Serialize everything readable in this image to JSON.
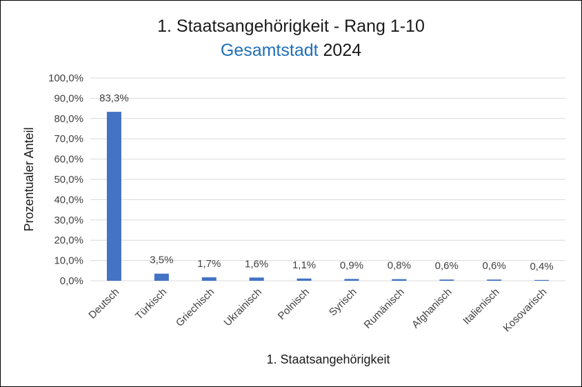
{
  "chart_data": {
    "type": "bar",
    "title": "1. Staatsangehörigkeit - Rang 1-10",
    "subtitle_accent": "Gesamtstadt",
    "subtitle_year": "2024",
    "xlabel": "1. Staatsangehörigkeit",
    "ylabel": "Prozentualer Anteil",
    "ylim": [
      0,
      100
    ],
    "yticks": [
      0,
      10,
      20,
      30,
      40,
      50,
      60,
      70,
      80,
      90,
      100
    ],
    "ytick_labels": [
      "0,0%",
      "10,0%",
      "20,0%",
      "30,0%",
      "40,0%",
      "50,0%",
      "60,0%",
      "70,0%",
      "80,0%",
      "90,0%",
      "100,0%"
    ],
    "categories": [
      "Deutsch",
      "Türkisch",
      "Griechisch",
      "Ukrainisch",
      "Polnisch",
      "Syrisch",
      "Rumänisch",
      "Afghanisch",
      "Italienisch",
      "Kosovarisch"
    ],
    "values": [
      83.3,
      3.5,
      1.7,
      1.6,
      1.1,
      0.9,
      0.8,
      0.6,
      0.6,
      0.4
    ],
    "data_labels": [
      "83,3%",
      "3,5%",
      "1,7%",
      "1,6%",
      "1,1%",
      "0,9%",
      "0,8%",
      "0,6%",
      "0,6%",
      "0,4%"
    ],
    "grid": true,
    "legend": "none",
    "colors": {
      "bar": "#4472c4",
      "accent": "#1f6fb8"
    }
  }
}
